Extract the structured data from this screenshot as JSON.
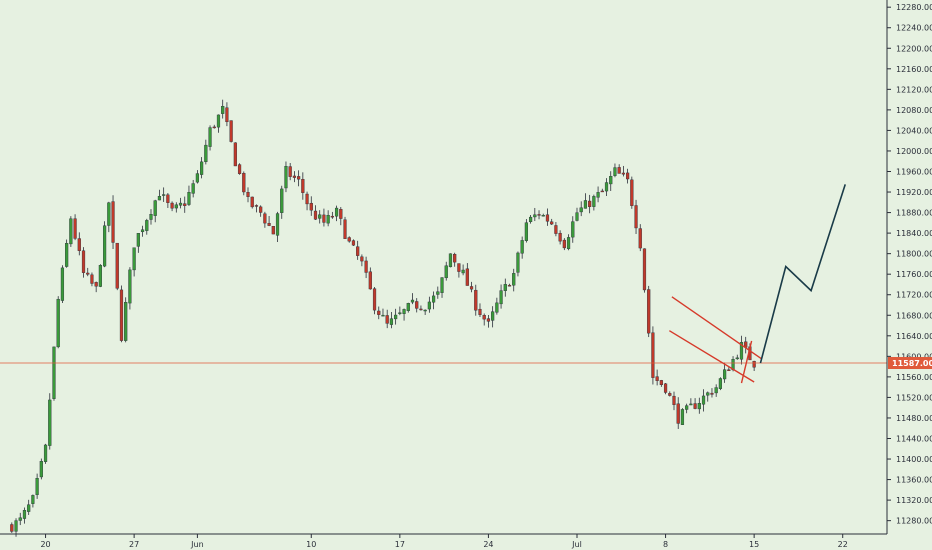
{
  "chart_data": {
    "type": "candlestick",
    "title": "",
    "xlabel": "",
    "ylabel": "",
    "ylim": [
      11254,
      12294
    ],
    "x_ticks": [
      {
        "label": "20",
        "day": 2
      },
      {
        "label": "27",
        "day": 9
      },
      {
        "label": "Jun",
        "day": 14
      },
      {
        "label": "10",
        "day": 23
      },
      {
        "label": "17",
        "day": 30
      },
      {
        "label": "24",
        "day": 37
      },
      {
        "label": "Jul",
        "day": 44
      },
      {
        "label": "8",
        "day": 51
      },
      {
        "label": "15",
        "day": 58
      },
      {
        "label": "22",
        "day": 65
      }
    ],
    "y_ticks": [
      "11280.00",
      "11320.00",
      "11360.00",
      "11400.00",
      "11440.00",
      "11480.00",
      "11520.00",
      "11560.00",
      "11600.00",
      "11640.00",
      "11680.00",
      "11720.00",
      "11760.00",
      "11800.00",
      "11840.00",
      "11880.00",
      "11920.00",
      "11960.00",
      "12000.00",
      "12040.00",
      "12080.00",
      "12120.00",
      "12160.00",
      "12200.00",
      "12240.00",
      "12280.00"
    ],
    "day_range": [
      -1.6,
      68.5
    ],
    "days": [
      0,
      1,
      2,
      3,
      4,
      5,
      6,
      7,
      8,
      9,
      10,
      11,
      12,
      13,
      14,
      15,
      16,
      17,
      18,
      19,
      20,
      21,
      22,
      23,
      24,
      25,
      26,
      27,
      28,
      29,
      30,
      31,
      32,
      33,
      34,
      35,
      36,
      37,
      38,
      39,
      40,
      41,
      42,
      43,
      44,
      45,
      46,
      47,
      48,
      49,
      50,
      51,
      52,
      53,
      54,
      55,
      56,
      57,
      58
    ],
    "closes": [
      11280,
      11320,
      11420,
      11710,
      11870,
      11760,
      11730,
      11900,
      11640,
      11820,
      11870,
      11920,
      11880,
      11900,
      11950,
      12040,
      12080,
      11980,
      11900,
      11880,
      11840,
      11960,
      11940,
      11880,
      11860,
      11880,
      11820,
      11780,
      11700,
      11660,
      11680,
      11700,
      11700,
      11720,
      11800,
      11760,
      11700,
      11660,
      11720,
      11760,
      11860,
      11880,
      11860,
      11820,
      11880,
      11900,
      11920,
      11960,
      11940,
      11820,
      11560,
      11540,
      11480,
      11500,
      11520,
      11540,
      11580,
      11620,
      11587
    ],
    "current_price": {
      "value": 11587,
      "label": "11587.00",
      "color": "#e05a3a"
    },
    "channel_lines": [
      {
        "from": [
          51.5,
          11716
        ],
        "to": [
          58.6,
          11595
        ]
      },
      {
        "from": [
          51.3,
          11650
        ],
        "to": [
          58.0,
          11550
        ]
      },
      {
        "from": [
          57.8,
          11630
        ],
        "to": [
          57.0,
          11548
        ]
      }
    ],
    "projection": [
      [
        58.5,
        11587
      ],
      [
        60.5,
        11775
      ],
      [
        62.5,
        11728
      ],
      [
        65.2,
        11935
      ]
    ],
    "colors": {
      "background": "#e6f1e1",
      "up": "#3a9a3a",
      "down": "#c0392b",
      "wick": "#2a2e39",
      "channel": "#d63a2a",
      "projection": "#1a3b48",
      "axis_line": "#2a2e39"
    }
  }
}
